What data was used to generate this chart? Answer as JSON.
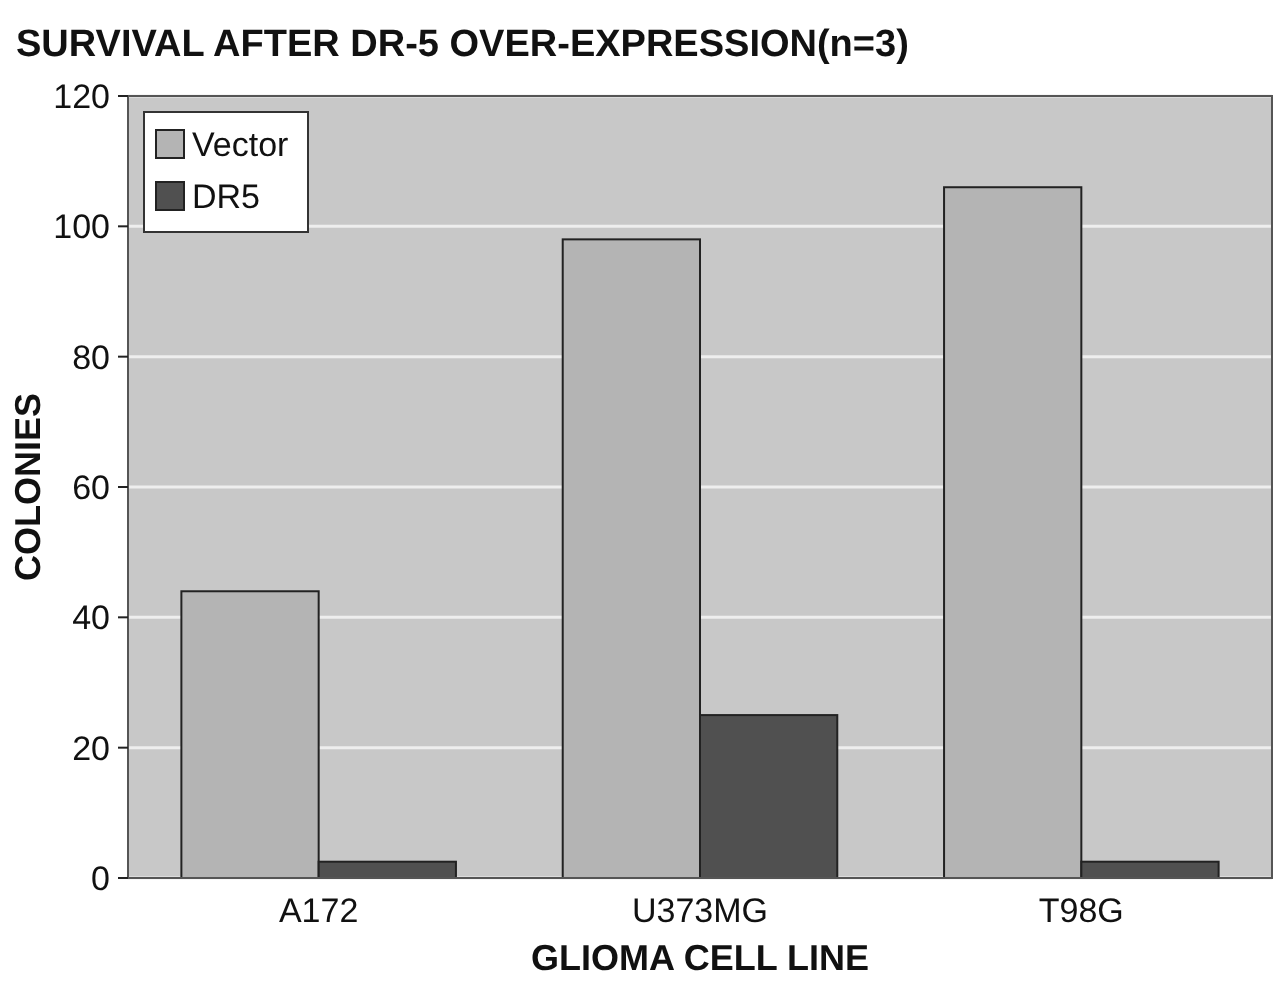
{
  "chart_data": {
    "type": "bar",
    "title": "SURVIVAL AFTER DR-5 OVER-EXPRESSION(n=3)",
    "xlabel": "GLIOMA CELL LINE",
    "ylabel": "COLONIES",
    "categories": [
      "A172",
      "U373MG",
      "T98G"
    ],
    "series": [
      {
        "name": "Vector",
        "color": "#b4b4b4",
        "values": [
          44,
          98,
          106
        ]
      },
      {
        "name": "DR5",
        "color": "#505050",
        "values": [
          2.5,
          25,
          2.5
        ]
      }
    ],
    "ylim": [
      0,
      120
    ],
    "yticks": [
      0,
      20,
      40,
      60,
      80,
      100,
      120
    ],
    "grid": "y",
    "legend": "top left"
  }
}
